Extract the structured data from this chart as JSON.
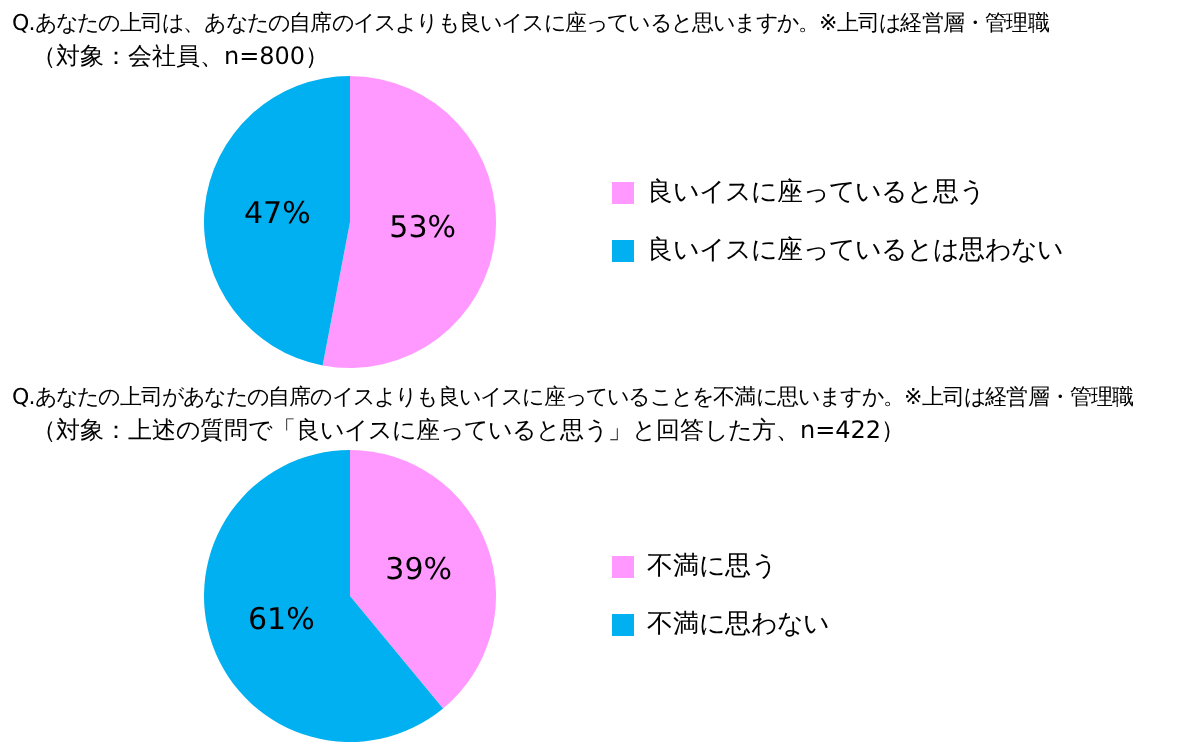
{
  "chart_data": [
    {
      "type": "pie",
      "title": "Q.あなたの上司は、あなたの自席のイスよりも良いイスに座っていると思いますか。※上司は経営層・管理職",
      "subtitle": "（対象：会社員、n=800）",
      "categories": [
        "良いイスに座っていると思う",
        "良いイスに座っているとは思わない"
      ],
      "values": [
        53,
        47
      ],
      "colors": [
        "#ff99ff",
        "#00b0f0"
      ],
      "value_labels": [
        "53%",
        "47%"
      ],
      "legend": "right"
    },
    {
      "type": "pie",
      "title": "Q.あなたの上司があなたの自席のイスよりも良いイスに座っていることを不満に思いますか。※上司は経営層・管理職",
      "subtitle": "（対象：上述の質問で「良いイスに座っていると思う」と回答した方、n=422）",
      "categories": [
        "不満に思う",
        "不満に思わない"
      ],
      "values": [
        39,
        61
      ],
      "colors": [
        "#ff99ff",
        "#00b0f0"
      ],
      "value_labels": [
        "39%",
        "61%"
      ],
      "legend": "right"
    }
  ]
}
